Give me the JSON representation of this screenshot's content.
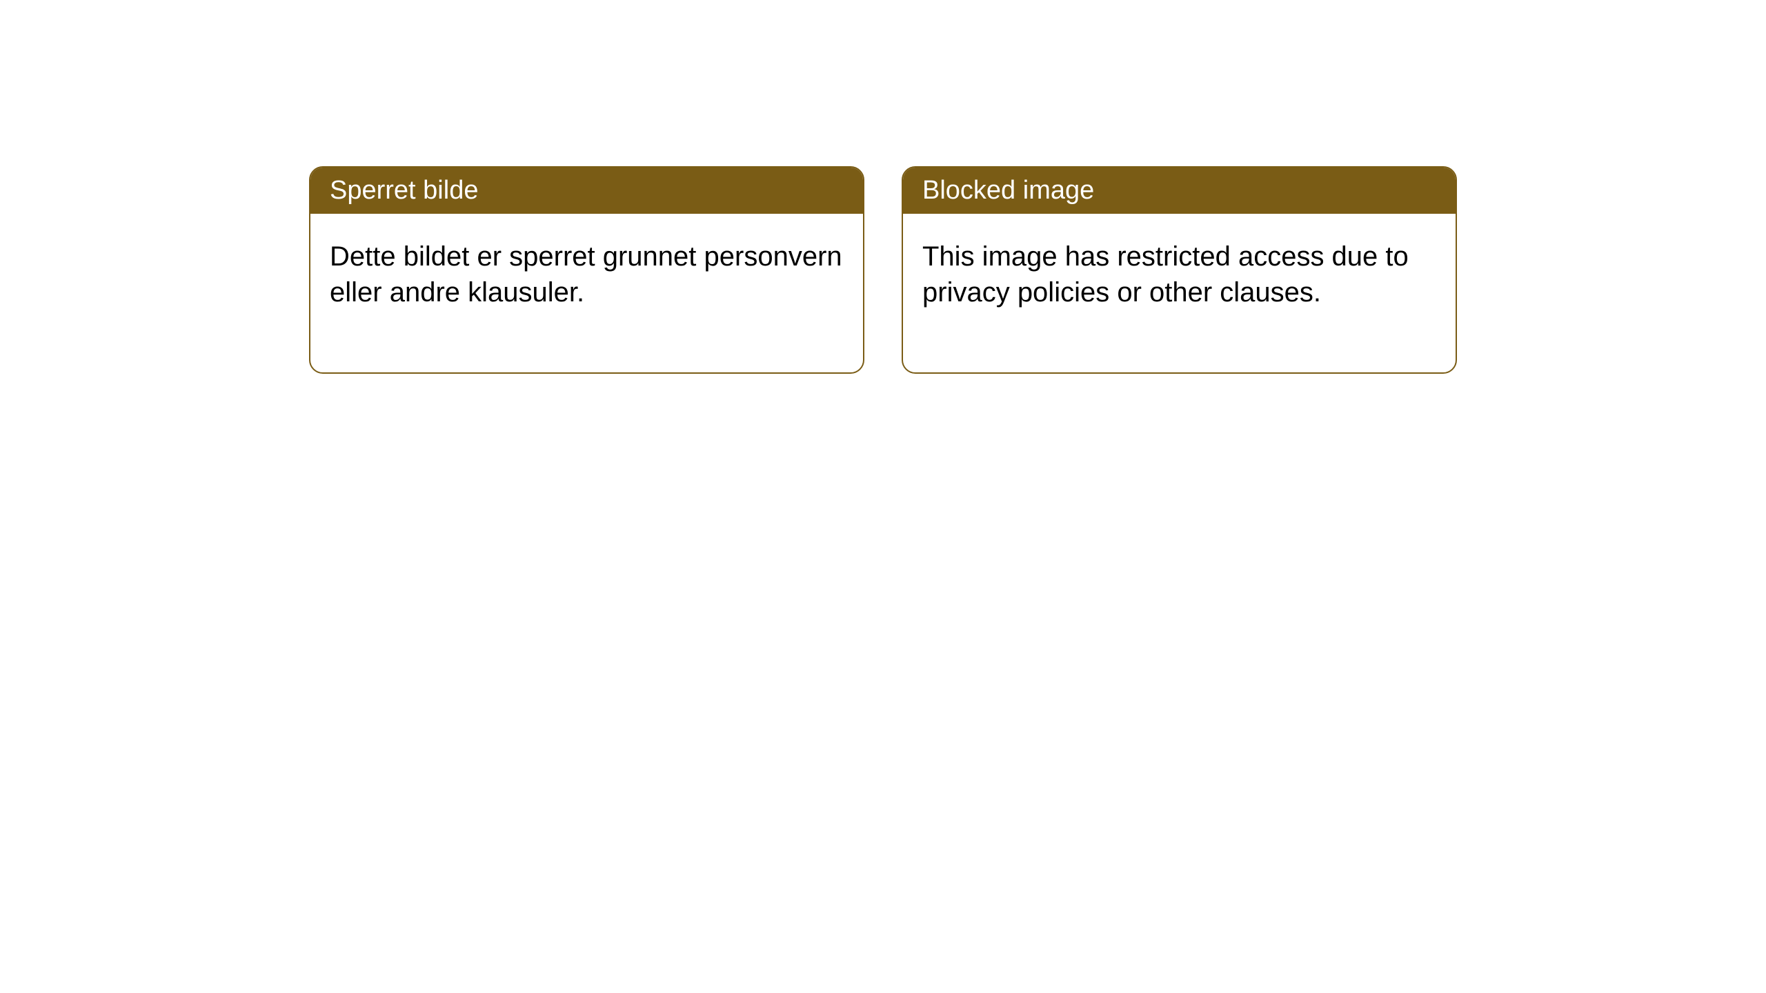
{
  "notices": [
    {
      "title": "Sperret bilde",
      "body": "Dette bildet er sperret grunnet personvern eller andre klausuler."
    },
    {
      "title": "Blocked image",
      "body": "This image has restricted access due to privacy policies or other clauses."
    }
  ],
  "colors": {
    "header_bg": "#7a5c15",
    "header_text": "#ffffff",
    "border": "#7a5c15",
    "body_bg": "#ffffff",
    "body_text": "#000000"
  }
}
